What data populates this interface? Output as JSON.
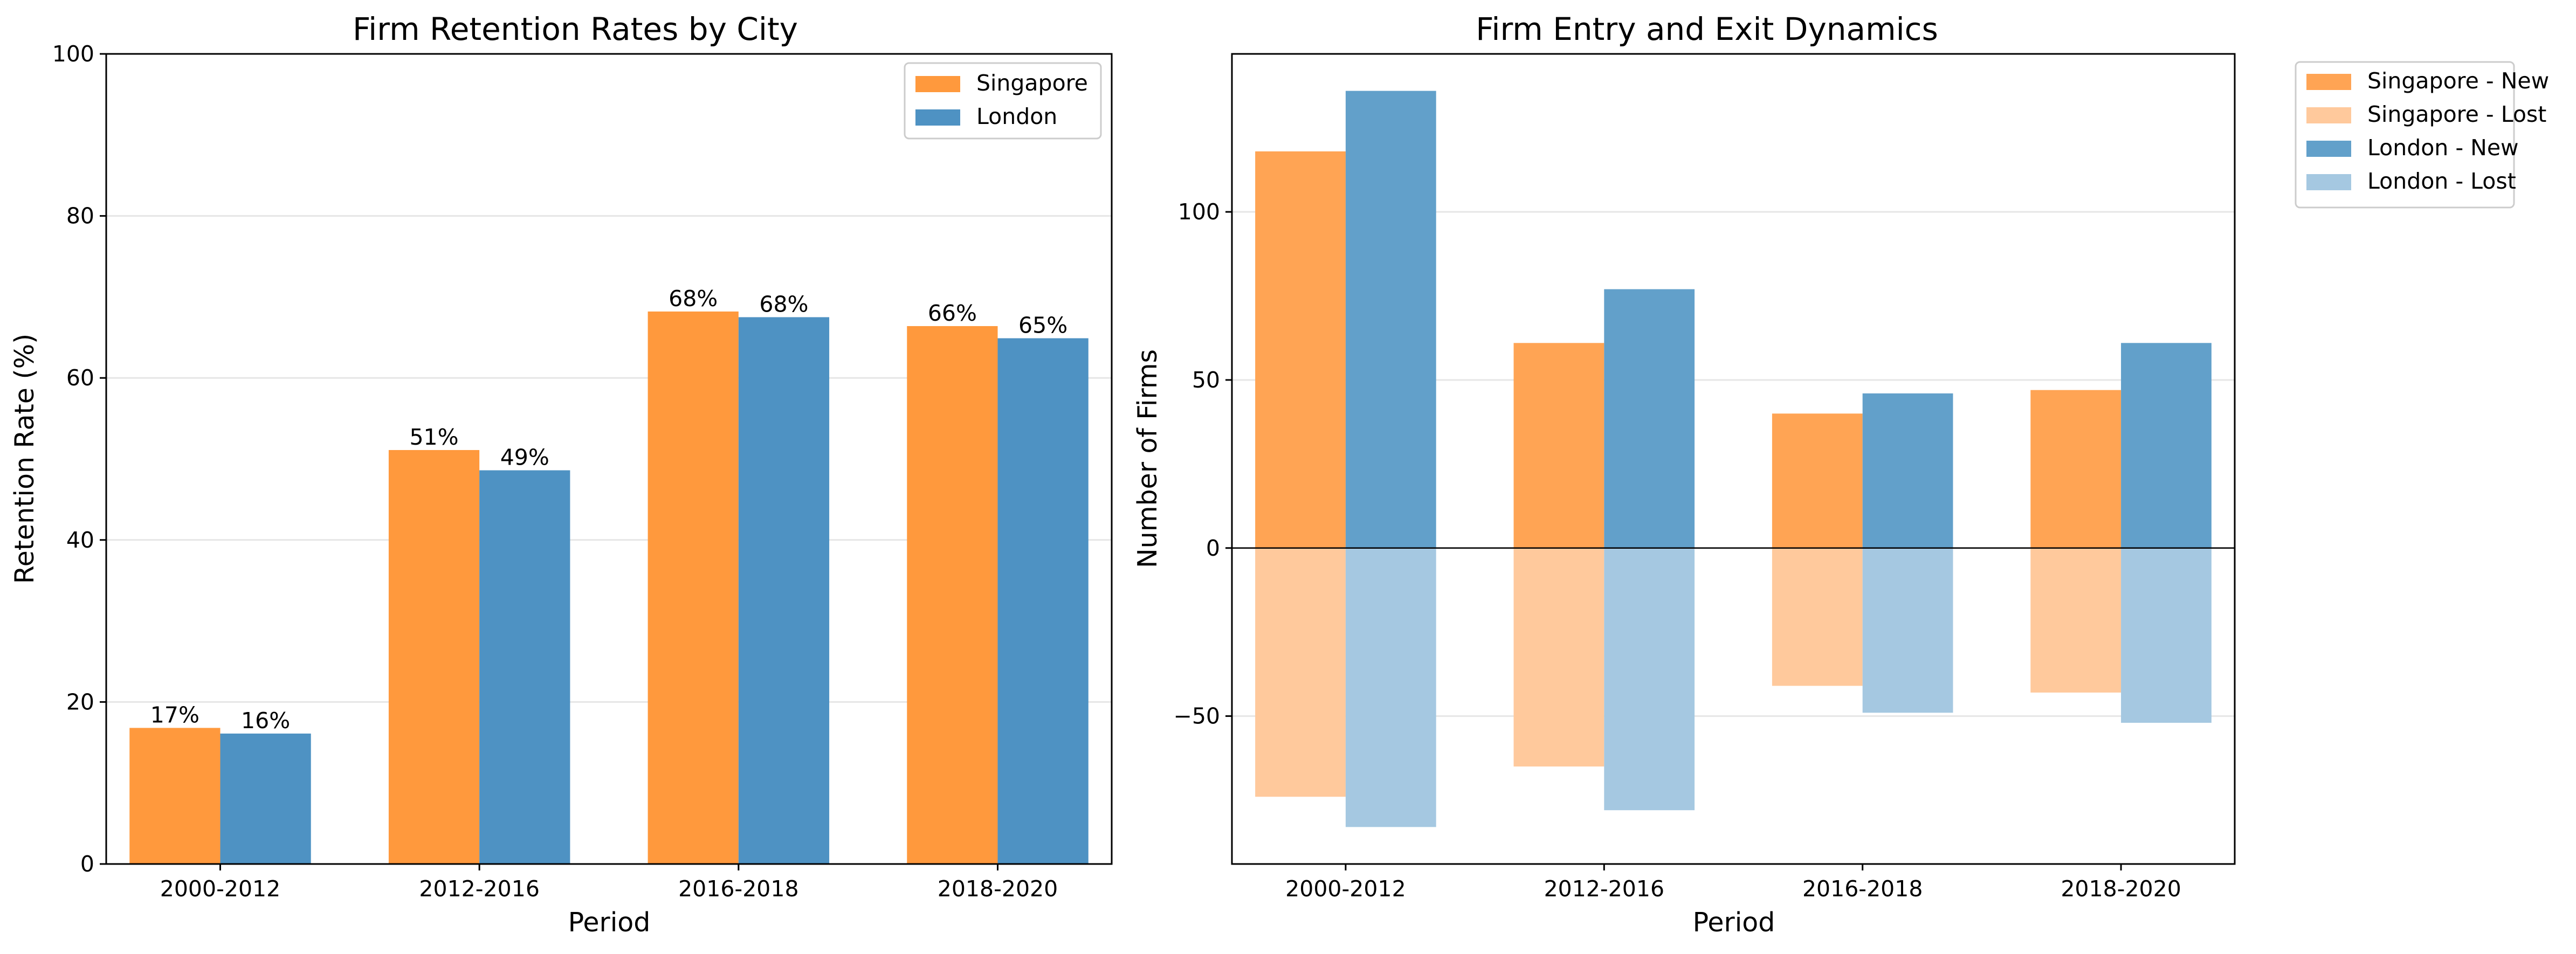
{
  "chart_data": [
    {
      "type": "bar",
      "title": "Firm Retention Rates by City",
      "xlabel": "Period",
      "ylabel": "Retention Rate (%)",
      "categories": [
        "2000-2012",
        "2012-2016",
        "2016-2018",
        "2018-2020"
      ],
      "ylim": [
        0,
        100
      ],
      "yticks": [
        "0",
        "20",
        "40",
        "60",
        "80",
        "100"
      ],
      "grid": "horizontal",
      "legend_position": "top-right",
      "series": [
        {
          "name": "Singapore",
          "color": "#ff993d",
          "values": [
            16.8,
            51.1,
            68.2,
            66.4
          ],
          "labels": [
            "17%",
            "51%",
            "68%",
            "66%"
          ]
        },
        {
          "name": "London",
          "color": "#4e92c3",
          "values": [
            16.1,
            48.6,
            67.5,
            64.9
          ],
          "labels": [
            "16%",
            "49%",
            "68%",
            "65%"
          ]
        }
      ]
    },
    {
      "type": "bar",
      "title": "Firm Entry and Exit Dynamics",
      "xlabel": "Period",
      "ylabel": "Number of Firms",
      "categories": [
        "2000-2012",
        "2012-2016",
        "2016-2018",
        "2018-2020"
      ],
      "ylim": [
        -94,
        147
      ],
      "yticks": [
        "−50",
        "0",
        "50",
        "100"
      ],
      "grid": "horizontal",
      "zero_line": true,
      "legend_position": "outside-right",
      "series": [
        {
          "name": "Singapore - New",
          "color": "#ffa454",
          "values": [
            118,
            61,
            40,
            47
          ]
        },
        {
          "name": "Singapore - Lost",
          "color": "#ffc99c",
          "values": [
            -74,
            -65,
            -41,
            -43
          ]
        },
        {
          "name": "London - New",
          "color": "#62a0ca",
          "values": [
            136,
            77,
            46,
            61
          ]
        },
        {
          "name": "London - Lost",
          "color": "#a5c8e1",
          "values": [
            -83,
            -78,
            -49,
            -52
          ]
        }
      ]
    }
  ]
}
